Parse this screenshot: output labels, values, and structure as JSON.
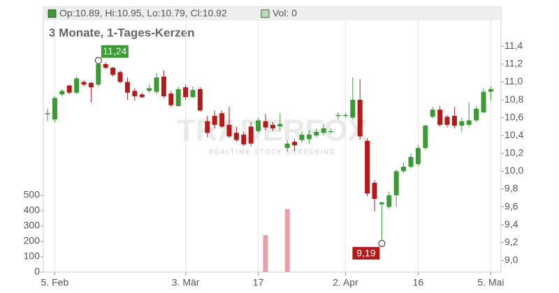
{
  "chart_data": {
    "type": "candlestick",
    "legend_text": "Op:10.89, Hi:10.95, Lo:10.79, Cl:10.92",
    "volume_legend": "Vol: 0",
    "subtitle": "3 Monate, 1-Tages-Kerzen",
    "watermark": "TRADERFOX",
    "watermark_sub": "REALTIME STOCK SCREENING",
    "up_color": "#3a9b35",
    "down_color": "#b31b1b",
    "volume_color": "#e8a0a8",
    "categories": [
      null,
      "5. Feb",
      null,
      null,
      null,
      null,
      null,
      null,
      null,
      null,
      null,
      null,
      null,
      null,
      null,
      null,
      null,
      null,
      null,
      "3. Mär",
      null,
      null,
      null,
      null,
      null,
      null,
      null,
      null,
      null,
      "17",
      null,
      null,
      null,
      null,
      null,
      null,
      null,
      null,
      null,
      null,
      null,
      "2. Apr",
      null,
      null,
      null,
      null,
      null,
      null,
      null,
      null,
      null,
      "16",
      null,
      null,
      null,
      null,
      null,
      null,
      null,
      null,
      null,
      "5. Mai"
    ],
    "open": [
      10.64,
      10.58,
      10.86,
      10.96,
      10.88,
      11.0,
      10.99,
      10.97,
      11.2,
      11.16,
      11.11,
      11.0,
      10.9,
      10.86,
      10.9,
      10.89,
      11.06,
      10.87,
      10.73,
      10.94,
      10.83,
      10.92,
      10.56,
      10.62,
      10.65,
      10.52,
      10.43,
      10.41,
      10.5,
      10.45,
      10.56,
      10.52,
      10.5,
      10.26,
      10.33,
      10.35,
      10.36,
      10.4,
      10.43,
      10.44,
      10.62,
      10.62,
      10.6,
      10.8,
      10.34,
      9.87,
      9.63,
      9.6,
      9.73,
      10.0,
      10.05,
      10.08,
      10.26,
      10.61,
      10.69,
      10.61,
      10.62,
      10.51,
      10.52,
      10.57,
      10.66,
      10.89
    ],
    "high": [
      10.7,
      10.84,
      10.92,
      10.97,
      11.06,
      11.02,
      11.0,
      11.24,
      11.22,
      11.17,
      11.13,
      11.05,
      10.93,
      10.88,
      10.97,
      11.1,
      11.13,
      10.9,
      10.95,
      10.97,
      10.95,
      10.94,
      10.62,
      10.68,
      10.68,
      10.72,
      10.5,
      10.44,
      10.55,
      10.6,
      10.64,
      10.55,
      10.65,
      10.35,
      10.36,
      10.45,
      10.46,
      10.48,
      10.53,
      10.48,
      10.66,
      10.65,
      11.05,
      11.03,
      10.37,
      9.9,
      9.66,
      9.77,
      10.02,
      10.1,
      10.2,
      10.29,
      10.52,
      10.72,
      10.73,
      10.63,
      10.72,
      10.6,
      10.77,
      10.73,
      10.93,
      10.95
    ],
    "low": [
      10.56,
      10.55,
      10.84,
      10.86,
      10.86,
      10.95,
      10.77,
      10.95,
      11.14,
      11.06,
      10.98,
      10.8,
      10.79,
      10.82,
      10.88,
      10.86,
      10.82,
      10.72,
      10.72,
      10.8,
      10.82,
      10.67,
      10.38,
      10.48,
      10.48,
      10.37,
      10.33,
      10.28,
      10.28,
      10.43,
      10.46,
      10.45,
      10.45,
      10.22,
      10.22,
      10.32,
      10.31,
      10.38,
      10.4,
      10.42,
      10.58,
      10.6,
      10.58,
      10.35,
      9.72,
      9.55,
      9.19,
      9.58,
      9.6,
      9.98,
      10.03,
      10.06,
      10.24,
      10.59,
      10.5,
      10.49,
      10.48,
      10.44,
      10.5,
      10.55,
      10.65,
      10.79
    ],
    "close": [
      10.65,
      10.82,
      10.9,
      10.88,
      11.04,
      10.97,
      10.94,
      11.2,
      11.16,
      11.08,
      11.0,
      10.88,
      10.84,
      10.83,
      10.93,
      11.05,
      10.84,
      10.74,
      10.92,
      10.83,
      10.91,
      10.68,
      10.43,
      10.52,
      10.5,
      10.39,
      10.35,
      10.3,
      10.31,
      10.57,
      10.49,
      10.48,
      10.53,
      10.31,
      10.29,
      10.41,
      10.41,
      10.44,
      10.48,
      10.45,
      10.63,
      10.63,
      10.8,
      10.39,
      9.75,
      9.69,
      9.65,
      9.73,
      10.0,
      10.05,
      10.16,
      10.26,
      10.51,
      10.69,
      10.52,
      10.52,
      10.51,
      10.56,
      10.57,
      10.7,
      10.89,
      10.92
    ],
    "volume": [
      0,
      0,
      0,
      0,
      0,
      0,
      0,
      0,
      0,
      0,
      0,
      0,
      0,
      0,
      0,
      0,
      0,
      0,
      0,
      0,
      0,
      0,
      0,
      0,
      0,
      0,
      0,
      0,
      0,
      0,
      240,
      0,
      0,
      410,
      0,
      0,
      0,
      0,
      0,
      0,
      0,
      0,
      0,
      0,
      0,
      0,
      0,
      0,
      0,
      0,
      0,
      0,
      0,
      0,
      0,
      0,
      0,
      0,
      0,
      0,
      0,
      0
    ],
    "ylim": [
      8.87,
      11.84
    ],
    "yticks": [
      {
        "value": 9.0,
        "label": "9,0"
      },
      {
        "value": 9.2,
        "label": "9,2"
      },
      {
        "value": 9.4,
        "label": "9,4"
      },
      {
        "value": 9.6,
        "label": "9,6"
      },
      {
        "value": 9.8,
        "label": "9,8"
      },
      {
        "value": 10.0,
        "label": "10,0"
      },
      {
        "value": 10.2,
        "label": "10,2"
      },
      {
        "value": 10.4,
        "label": "10,4"
      },
      {
        "value": 10.6,
        "label": "10,6"
      },
      {
        "value": 10.8,
        "label": "10,8"
      },
      {
        "value": 11.0,
        "label": "11,0"
      },
      {
        "value": 11.2,
        "label": "11,2"
      },
      {
        "value": 11.4,
        "label": "11,4"
      }
    ],
    "volume_ylim": [
      0,
      500
    ],
    "volume_yticks": [
      0,
      100,
      200,
      300,
      400,
      500
    ],
    "annotations": [
      {
        "value": 11.24,
        "label": "11,24"
      },
      {
        "value": 9.19,
        "label": "9,19"
      }
    ]
  }
}
